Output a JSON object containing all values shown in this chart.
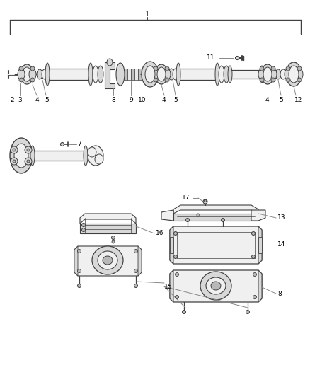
{
  "bg_color": "#ffffff",
  "dk": "#404040",
  "mg": "#888888",
  "lk": "#999999",
  "fill_light": "#f0f0f0",
  "fill_mid": "#d8d8d8",
  "fill_dark": "#b8b8b8"
}
